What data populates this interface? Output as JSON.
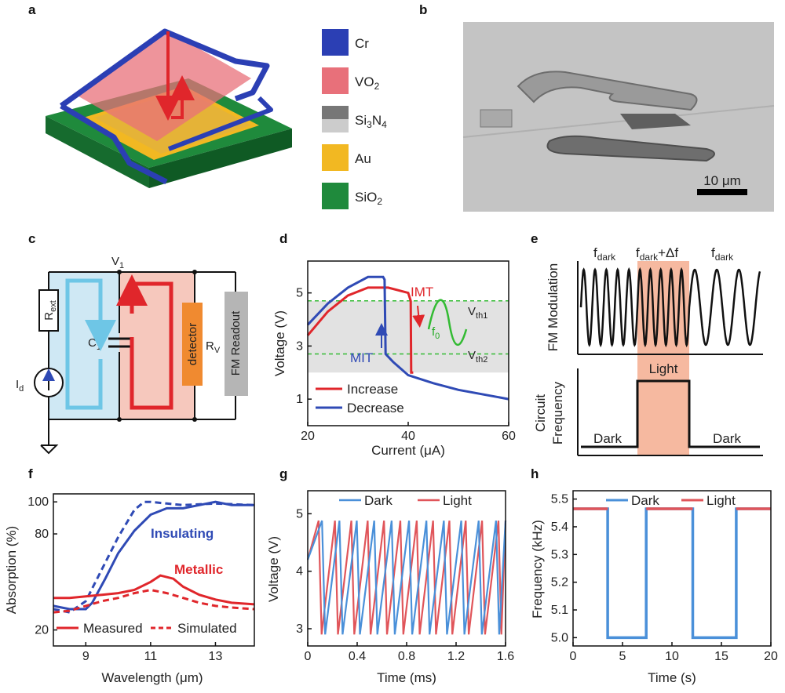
{
  "panels": {
    "a": {
      "label": "a",
      "legend": [
        {
          "name": "Cr",
          "color": "#2b3fb4"
        },
        {
          "name": "VO",
          "sub": "2",
          "color": "#e8707a"
        },
        {
          "name": "Si",
          "sub": "3",
          "name2": "N",
          "sub2": "4",
          "color": "#888888"
        },
        {
          "name": "Au",
          "color": "#f2b822"
        },
        {
          "name": "SiO",
          "sub": "2",
          "color": "#1f8a3c"
        }
      ]
    },
    "b": {
      "label": "b",
      "scalebar": "10 μm"
    },
    "c": {
      "label": "c",
      "v1": "V",
      "v1_sub": "1",
      "rext": "R",
      "rext_sub": "ext",
      "c1": "C",
      "c1_sub": "1",
      "id": "I",
      "id_sub": "d",
      "rv": "R",
      "rv_sub": "V",
      "detector": "detector",
      "fm_readout": "FM Readout"
    },
    "d": {
      "label": "d",
      "ylabel": "Voltage (V)",
      "xlabel": "Current (μA)",
      "xticks": [
        "20",
        "40",
        "60"
      ],
      "yticks": [
        "1",
        "3",
        "5"
      ],
      "imt": "IMT",
      "mit": "MIT",
      "vth1": "V",
      "vth1_sub": "th1",
      "vth2": "V",
      "vth2_sub": "th2",
      "f0": "f",
      "f0_sub": "0",
      "legend_increase": "Increase",
      "legend_decrease": "Decrease"
    },
    "e": {
      "label": "e",
      "ylabel_top": "FM Modulation",
      "ylabel_bottom_1": "Circuit",
      "ylabel_bottom_2": "Frequency",
      "fdark_1": "f",
      "fdark_sub": "dark",
      "fmid": "f",
      "fmid_sub": "dark",
      "fmid_rest": "+Δf",
      "fdark_2": "f",
      "light": "Light",
      "dark_left": "Dark",
      "dark_right": "Dark"
    },
    "f": {
      "label": "f",
      "ylabel": "Absorption (%)",
      "xlabel": "Wavelength (μm)",
      "xticks": [
        "9",
        "11",
        "13"
      ],
      "yticks": [
        "20",
        "80",
        "100"
      ],
      "insulating": "Insulating",
      "metallic": "Metallic",
      "legend_measured": "Measured",
      "legend_simulated": "Simulated"
    },
    "g": {
      "label": "g",
      "ylabel": "Voltage (V)",
      "xlabel": "Time (ms)",
      "xticks": [
        "0",
        "0.4",
        "0.8",
        "1.2",
        "1.6"
      ],
      "yticks": [
        "3",
        "4",
        "5"
      ],
      "legend_dark": "Dark",
      "legend_light": "Light"
    },
    "h": {
      "label": "h",
      "ylabel": "Frequency (kHz)",
      "xlabel": "Time (s)",
      "xticks": [
        "0",
        "5",
        "10",
        "15",
        "20"
      ],
      "yticks": [
        "5.0",
        "5.1",
        "5.2",
        "5.3",
        "5.4",
        "5.5"
      ],
      "legend_dark": "Dark",
      "legend_light": "Light"
    }
  },
  "colors": {
    "red": "#e0262b",
    "blue": "#2f4ab5",
    "lightblue": "#4a90d9",
    "lightred": "#e0555a",
    "green": "#22aa22",
    "shade": "#f6b9a0"
  },
  "chart_data": [
    {
      "panel": "d",
      "type": "line",
      "xlim": [
        20,
        60
      ],
      "ylim": [
        0,
        6.2
      ],
      "series": [
        {
          "name": "Increase",
          "x": [
            20,
            24,
            28,
            32,
            36,
            40,
            40.5,
            40.6,
            41
          ],
          "y": [
            3.4,
            4.3,
            4.9,
            5.2,
            5.2,
            5.0,
            4.7,
            2.0,
            2.0
          ]
        },
        {
          "name": "Decrease",
          "x": [
            60,
            50,
            45,
            40,
            37,
            35.5,
            35.3,
            35,
            32,
            28,
            24,
            20
          ],
          "y": [
            1.0,
            1.35,
            1.6,
            1.9,
            2.4,
            2.7,
            5.5,
            5.6,
            5.6,
            5.2,
            4.6,
            3.8
          ]
        }
      ],
      "hlines": [
        {
          "name": "Vth1",
          "y": 4.7
        },
        {
          "name": "Vth2",
          "y": 2.7
        }
      ]
    },
    {
      "panel": "f",
      "type": "line",
      "xlim": [
        8,
        14.2
      ],
      "ylim": [
        10,
        105
      ],
      "series": [
        {
          "name": "Insulating Measured",
          "x": [
            8,
            8.5,
            9,
            9.2,
            9.6,
            10,
            10.5,
            11,
            11.5,
            12,
            12.5,
            13,
            13.5,
            14.2
          ],
          "y": [
            35,
            33,
            33,
            37,
            52,
            68,
            82,
            92,
            96,
            96,
            98,
            100,
            98,
            98
          ]
        },
        {
          "name": "Insulating Simulated",
          "x": [
            8,
            8.5,
            9,
            9.5,
            10,
            10.5,
            10.8,
            11,
            11.5,
            12,
            13,
            14.2
          ],
          "y": [
            33,
            31,
            38,
            58,
            78,
            95,
            100,
            100,
            99,
            98,
            99,
            98
          ]
        },
        {
          "name": "Metallic Measured",
          "x": [
            8,
            8.5,
            9,
            9.5,
            10,
            10.5,
            11,
            11.3,
            11.7,
            12,
            12.5,
            13,
            13.5,
            14.2
          ],
          "y": [
            40,
            40,
            41,
            42,
            43,
            45,
            50,
            54,
            52,
            47,
            42,
            39,
            37,
            36
          ]
        },
        {
          "name": "Metallic Simulated",
          "x": [
            8,
            8.5,
            9,
            9.5,
            10,
            10.5,
            11,
            11.5,
            12,
            12.5,
            13,
            13.5,
            14.2
          ],
          "y": [
            31,
            32,
            35,
            38,
            40,
            43,
            45,
            43,
            40,
            37,
            35,
            34,
            33
          ]
        }
      ]
    },
    {
      "panel": "g",
      "type": "line",
      "xlim": [
        0,
        1.6
      ],
      "ylim": [
        2.7,
        5.4
      ],
      "series": [
        {
          "name": "Dark",
          "period_ms": 0.1408,
          "vmin": 2.9,
          "vmax": 4.88
        },
        {
          "name": "Light",
          "period_ms": 0.1322,
          "vmin": 2.9,
          "vmax": 4.88
        }
      ]
    },
    {
      "panel": "h",
      "type": "line",
      "xlim": [
        0,
        20
      ],
      "ylim": [
        4.97,
        5.53
      ],
      "series": [
        {
          "name": "Dark",
          "x": [
            0,
            3.5,
            3.5,
            7.4,
            7.4,
            12.1,
            12.1,
            16.5,
            16.5,
            20
          ],
          "y": [
            5.465,
            5.465,
            5.0,
            5.0,
            5.465,
            5.465,
            5.0,
            5.0,
            5.465,
            5.465
          ]
        },
        {
          "name": "Light",
          "segments": [
            [
              0,
              3.5
            ],
            [
              7.4,
              12.1
            ],
            [
              16.5,
              20
            ]
          ],
          "y": 5.465
        }
      ]
    }
  ]
}
